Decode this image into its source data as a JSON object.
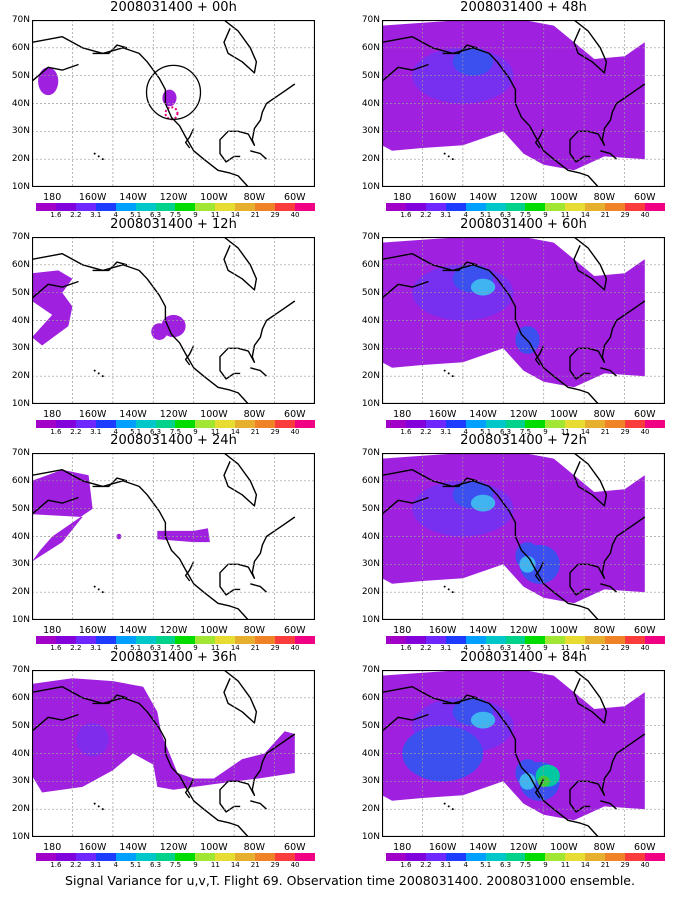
{
  "caption": "Signal Variance for u,v,T. Flight 69. Observation time 2008031400. 2008031000 ensemble.",
  "panels": [
    {
      "title": "2008031400 + 00h",
      "level": 0
    },
    {
      "title": "2008031400 + 48h",
      "level": 4
    },
    {
      "title": "2008031400 + 12h",
      "level": 1
    },
    {
      "title": "2008031400 + 60h",
      "level": 5
    },
    {
      "title": "2008031400 + 24h",
      "level": 2
    },
    {
      "title": "2008031400 + 72h",
      "level": 6
    },
    {
      "title": "2008031400 + 36h",
      "level": 3
    },
    {
      "title": "2008031400 + 84h",
      "level": 7
    }
  ],
  "lat_labels": [
    "70N",
    "60N",
    "50N",
    "40N",
    "30N",
    "20N",
    "10N"
  ],
  "lon_labels": [
    "180",
    "160W",
    "140W",
    "120W",
    "100W",
    "80W",
    "60W"
  ],
  "colorbar": {
    "labels": [
      "1.6",
      "2.2",
      "3.1",
      "4",
      "5.1",
      "6.3",
      "7.5",
      "9",
      "11",
      "14",
      "21",
      "29",
      "40"
    ],
    "colors": [
      "#a000c8",
      "#8200dc",
      "#6e28ff",
      "#1e3cff",
      "#00a0ff",
      "#00c8c8",
      "#00d28c",
      "#00dc00",
      "#a0e632",
      "#e6dc32",
      "#e6af2d",
      "#f08228",
      "#fa3c3c",
      "#f00082"
    ]
  },
  "shading_colors": {
    "level1": "#a020e0",
    "level2": "#7830f0",
    "level3": "#3c50f0",
    "level4": "#40b4f0",
    "level5": "#00c8a0",
    "level6": "#3ccc3c"
  },
  "observation_circle_color": "#000000",
  "observation_marker_color": "#e6007a"
}
